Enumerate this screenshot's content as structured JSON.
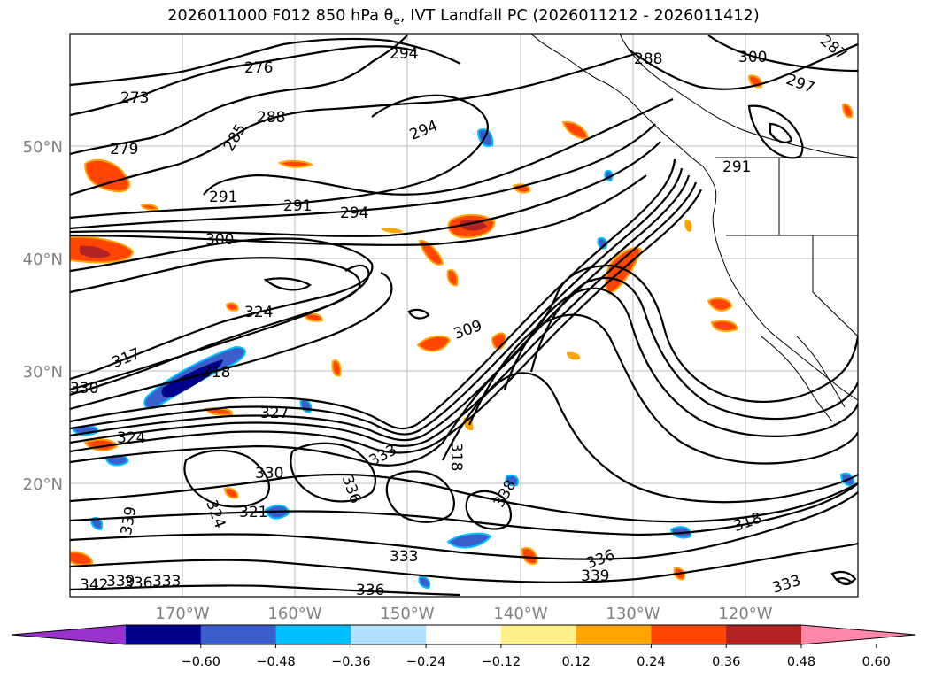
{
  "title": {
    "main": "2026011000 F012 850 hPa θ",
    "sub": "e",
    "rest": ", IVT Landfall PC (2026011212 - 2026011412)"
  },
  "map": {
    "lat_labels": [
      "50°N",
      "40°N",
      "30°N",
      "20°N"
    ],
    "lon_labels": [
      "170°W",
      "160°W",
      "150°W",
      "140°W",
      "130°W",
      "120°W"
    ],
    "contour_levels": [
      "273",
      "276",
      "279",
      "285",
      "288",
      "291",
      "291",
      "294",
      "294",
      "294",
      "297",
      "300",
      "300",
      "324",
      "317",
      "318",
      "330",
      "327",
      "324",
      "309",
      "333",
      "321",
      "324",
      "339",
      "330",
      "336",
      "318",
      "318",
      "333",
      "336",
      "339",
      "342",
      "336",
      "333",
      "336",
      "339",
      "338",
      "333",
      "291",
      "287",
      "288"
    ]
  },
  "colorbar": {
    "tick_labels": [
      "−0.60",
      "−0.48",
      "−0.36",
      "−0.24",
      "−0.12",
      "0.12",
      "0.24",
      "0.36",
      "0.48",
      "0.60"
    ],
    "colors": [
      "#9932cc",
      "#00008b",
      "#3a5fcd",
      "#00bfff",
      "#b0e2ff",
      "#ffffff",
      "#fff08a",
      "#ffa500",
      "#ff4500",
      "#b22222",
      "#ff88aa"
    ]
  }
}
